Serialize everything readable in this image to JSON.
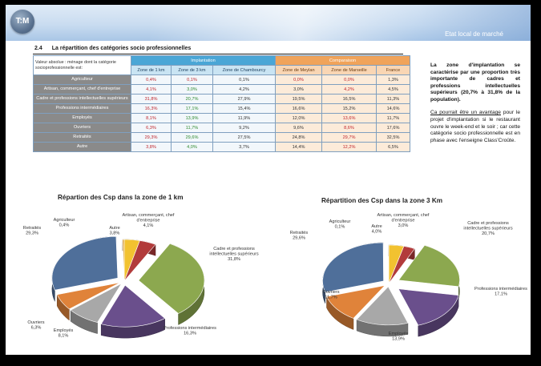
{
  "header": {
    "logo_text": "T:M",
    "title": "Etat local de marché"
  },
  "section": {
    "number": "2.4",
    "title": "La répartition des catégories socio professionnelles"
  },
  "table": {
    "caption": "Valeur absolue : ménage dont la catégorie socioprofessionnelle est:",
    "groups": {
      "implantation": "Implantation",
      "comparaison": "Comparaison"
    },
    "columns": [
      "Zone de 1 km",
      "Zone de 3 km",
      "Zone de Chambourcy",
      "Zone de Meylan",
      "Zone de Marseille",
      "France"
    ],
    "rows": [
      {
        "label": "Agriculteur",
        "values": [
          "0,4%",
          "0,1%",
          "0,1%",
          "0,0%",
          "0,0%",
          "1,3%"
        ]
      },
      {
        "label": "Artisan, commerçant, chef d'entreprise",
        "values": [
          "4,1%",
          "3,0%",
          "4,2%",
          "3,0%",
          "4,2%",
          "4,5%"
        ]
      },
      {
        "label": "Cadre et professions intellectuelles supérieurs",
        "values": [
          "31,8%",
          "20,7%",
          "27,9%",
          "19,5%",
          "16,5%",
          "11,3%"
        ]
      },
      {
        "label": "Professions intermédiaires",
        "values": [
          "16,3%",
          "17,1%",
          "15,4%",
          "16,6%",
          "15,2%",
          "14,6%"
        ]
      },
      {
        "label": "Employés",
        "values": [
          "8,1%",
          "13,9%",
          "11,9%",
          "12,0%",
          "13,6%",
          "11,7%"
        ]
      },
      {
        "label": "Ouvriers",
        "values": [
          "6,3%",
          "11,7%",
          "9,2%",
          "9,6%",
          "8,6%",
          "17,6%"
        ]
      },
      {
        "label": "Retraités",
        "values": [
          "29,3%",
          "29,6%",
          "27,5%",
          "24,8%",
          "29,7%",
          "32,5%"
        ]
      },
      {
        "label": "Autre",
        "values": [
          "3,8%",
          "4,0%",
          "3,7%",
          "14,4%",
          "12,2%",
          "6,5%"
        ]
      }
    ]
  },
  "sidebar": {
    "para1": "La zone d'implantation se caractérise par une proportion très importante de cadres et professions intellectuelles supérieurs (20,7% à 31,8% de la population).",
    "para2_link": "Ca pourrait être un avantage",
    "para2_rest": " pour le projet d'implantation si le restaurant ouvre le week-end et le soir ; car cette catégorie socio professionnelle est en phase avec l'enseigne ",
    "para2_brand": "Class'Croûte",
    "para2_end": "."
  },
  "colors": {
    "impl_header": "#4aa6d6",
    "comp_header": "#f0a35a",
    "row_label": "#8a8a8a",
    "pie_agriculteur": "#d99a2b",
    "pie_artisan": "#b23b3b",
    "pie_cadre": "#8ca84f",
    "pie_prof_inter": "#6a4f8c",
    "pie_employes": "#a8a8a8",
    "pie_ouvriers": "#e0833a",
    "pie_retraites": "#4f6f9a",
    "pie_autre": "#f2c230"
  },
  "chart_data": [
    {
      "type": "pie",
      "title": "Répartion des Csp dans la zone de 1 km",
      "slices": [
        {
          "label": "Autre",
          "value": 3.8,
          "display": "3,8%"
        },
        {
          "label": "Artisan, commerçant, chef d'entreprise",
          "value": 4.1,
          "display": "4,1%"
        },
        {
          "label": "Cadre et professions intellectuelles supérieurs",
          "value": 31.8,
          "display": "31,8%"
        },
        {
          "label": "Professions intermédiaires",
          "value": 16.3,
          "display": "16,3%"
        },
        {
          "label": "Employés",
          "value": 8.1,
          "display": "8,1%"
        },
        {
          "label": "Ouvriers",
          "value": 6.3,
          "display": "6,3%"
        },
        {
          "label": "Retraités",
          "value": 29.3,
          "display": "29,3%"
        },
        {
          "label": "Agriculteur",
          "value": 0.4,
          "display": "0,4%"
        }
      ]
    },
    {
      "type": "pie",
      "title": "Répartition des Csp dans la zone 3 Km",
      "slices": [
        {
          "label": "Autre",
          "value": 4.0,
          "display": "4,0%"
        },
        {
          "label": "Artisan, commerçant, chef d'entreprise",
          "value": 3.0,
          "display": "3,0%"
        },
        {
          "label": "Cadre et professions intellectuelles supérieurs",
          "value": 20.7,
          "display": "20,7%"
        },
        {
          "label": "Professions intermédiaires",
          "value": 17.1,
          "display": "17,1%"
        },
        {
          "label": "Employés",
          "value": 13.9,
          "display": "13,9%"
        },
        {
          "label": "Ouvriers",
          "value": 11.7,
          "display": "11,7%"
        },
        {
          "label": "Retraités",
          "value": 29.6,
          "display": "29,6%"
        },
        {
          "label": "Agriculteur",
          "value": 0.1,
          "display": "0,1%"
        }
      ]
    }
  ]
}
